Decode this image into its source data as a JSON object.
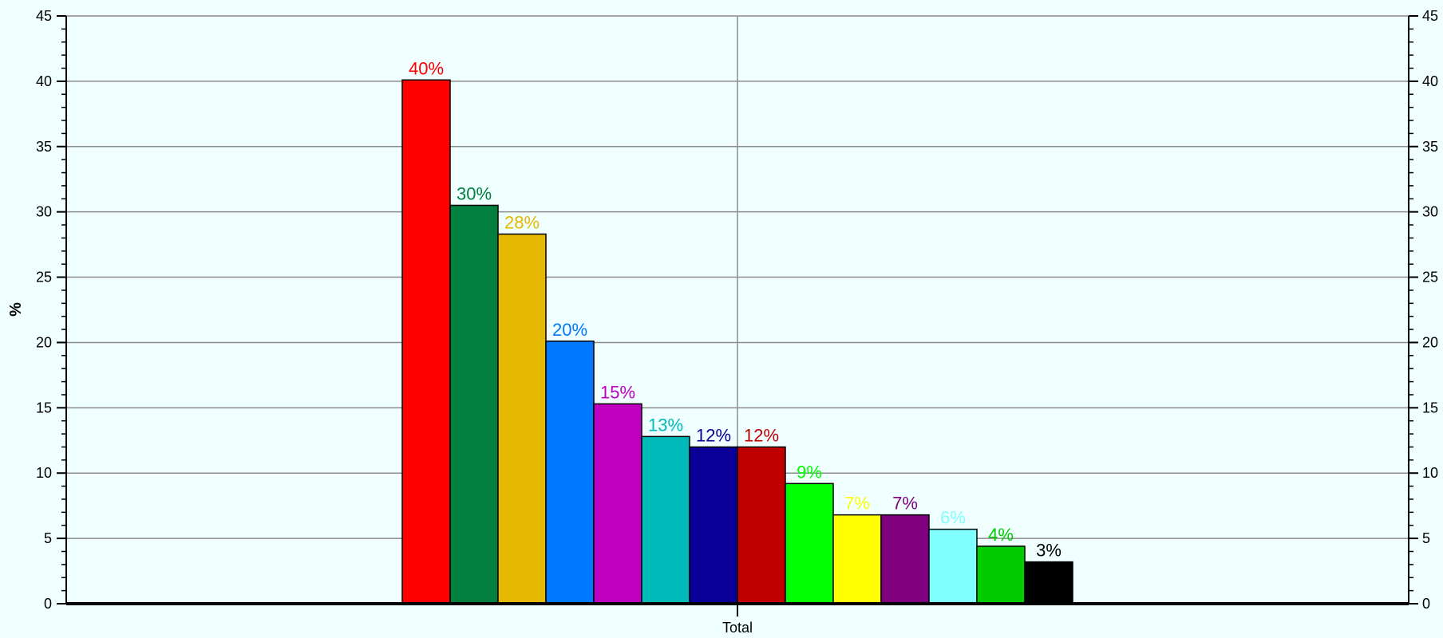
{
  "chart_data": {
    "type": "bar",
    "title": "",
    "xlabel": "",
    "ylabel": "%",
    "ylim": [
      0,
      45
    ],
    "ytick_step": 5,
    "grid": true,
    "categories": [
      "Total"
    ],
    "series": [
      {
        "value": 40.1,
        "label": "40%",
        "color": "#FF0000",
        "label_color": "#FF0000"
      },
      {
        "value": 30.5,
        "label": "30%",
        "color": "#007F3F",
        "label_color": "#007F3F"
      },
      {
        "value": 28.3,
        "label": "28%",
        "color": "#E6B800",
        "label_color": "#E6B800"
      },
      {
        "value": 20.1,
        "label": "20%",
        "color": "#0078FF",
        "label_color": "#0078FF"
      },
      {
        "value": 15.3,
        "label": "15%",
        "color": "#C000C0",
        "label_color": "#C000C0"
      },
      {
        "value": 12.8,
        "label": "13%",
        "color": "#00BABA",
        "label_color": "#00BABA"
      },
      {
        "value": 12.0,
        "label": "12%",
        "color": "#0A0099",
        "label_color": "#0A0099"
      },
      {
        "value": 12.0,
        "label": "12%",
        "color": "#C00000",
        "label_color": "#C00000"
      },
      {
        "value": 9.2,
        "label": "9%",
        "color": "#00FF00",
        "label_color": "#00FF00"
      },
      {
        "value": 6.8,
        "label": "7%",
        "color": "#FFFF00",
        "label_color": "#FFFF00"
      },
      {
        "value": 6.8,
        "label": "7%",
        "color": "#800080",
        "label_color": "#800080"
      },
      {
        "value": 5.7,
        "label": "6%",
        "color": "#80FFFF",
        "label_color": "#80FFFF"
      },
      {
        "value": 4.4,
        "label": "4%",
        "color": "#00CC00",
        "label_color": "#00CC00"
      },
      {
        "value": 3.2,
        "label": "3%",
        "color": "#000000",
        "label_color": "#000000"
      }
    ]
  }
}
